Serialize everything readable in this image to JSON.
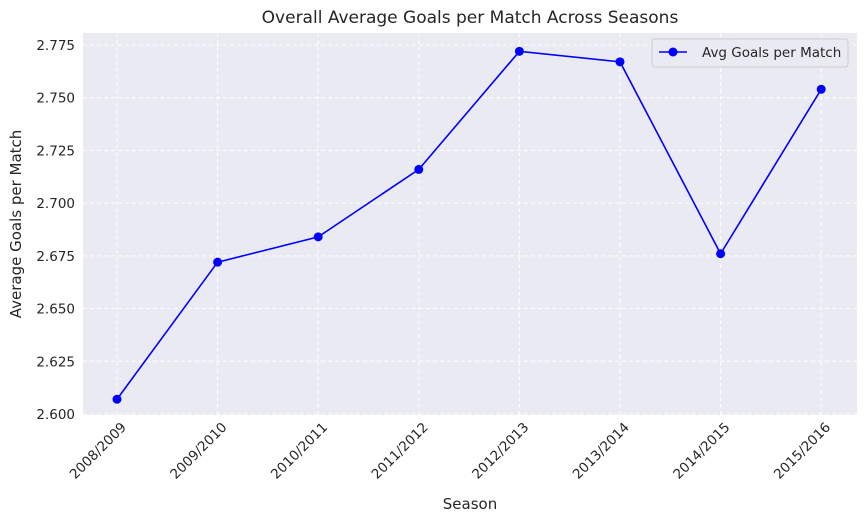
{
  "chart_data": {
    "type": "line",
    "title": "Overall Average Goals per Match Across Seasons",
    "xlabel": "Season",
    "ylabel": "Average Goals per Match",
    "categories": [
      "2008/2009",
      "2009/2010",
      "2010/2011",
      "2011/2012",
      "2012/2013",
      "2013/2014",
      "2014/2015",
      "2015/2016"
    ],
    "series": [
      {
        "name": "Avg Goals per Match",
        "values": [
          2.607,
          2.672,
          2.684,
          2.716,
          2.772,
          2.767,
          2.676,
          2.754
        ],
        "color": "#0000ff",
        "marker": "circle"
      }
    ],
    "ylim": [
      2.6,
      2.78
    ],
    "yticks": [
      "2.600",
      "2.625",
      "2.650",
      "2.675",
      "2.700",
      "2.725",
      "2.750",
      "2.775"
    ],
    "grid": true,
    "legend_position": "top-right",
    "background": "#eaeaf2"
  }
}
